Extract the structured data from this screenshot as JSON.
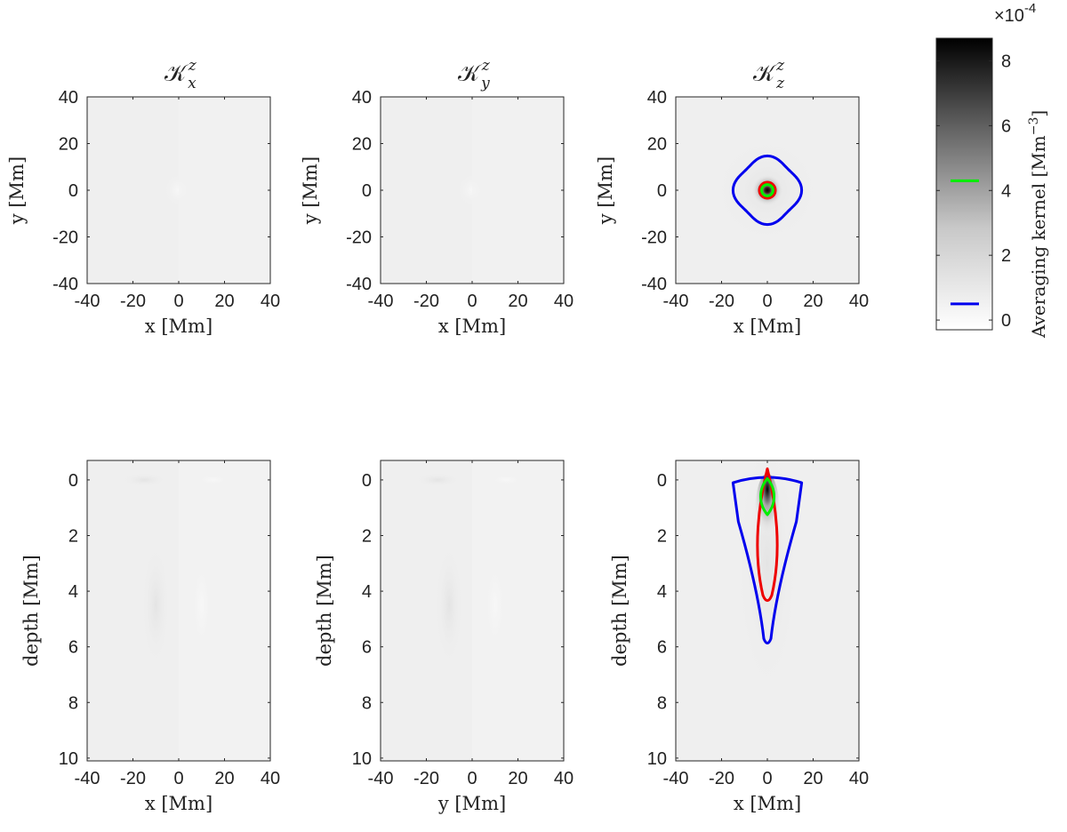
{
  "chart_data": [
    {
      "type": "heatmap",
      "panel": "top-1",
      "title": "K_x^z",
      "title_sym": "𝒦",
      "title_sub": "x",
      "title_sup": "z",
      "xlabel": "x [Mm]",
      "ylabel": "y [Mm]",
      "xlim": [
        -40,
        40
      ],
      "ylim": [
        -40,
        40
      ],
      "x_ticks": [
        "-40",
        "-20",
        "0",
        "20",
        "40"
      ],
      "y_ticks": [
        "40",
        "20",
        "0",
        "-20",
        "-40"
      ],
      "peak_relative": 0.03,
      "contours": []
    },
    {
      "type": "heatmap",
      "panel": "top-2",
      "title": "K_y^z",
      "title_sym": "𝒦",
      "title_sub": "y",
      "title_sup": "z",
      "xlabel": "x [Mm]",
      "ylabel": "y [Mm]",
      "xlim": [
        -40,
        40
      ],
      "ylim": [
        -40,
        40
      ],
      "x_ticks": [
        "-40",
        "-20",
        "0",
        "20",
        "40"
      ],
      "y_ticks": [
        "40",
        "20",
        "0",
        "-20",
        "-40"
      ],
      "peak_relative": 0.02,
      "contours": []
    },
    {
      "type": "heatmap",
      "panel": "top-3",
      "title": "K_z^z",
      "title_sym": "𝒦",
      "title_sub": "z",
      "title_sup": "z",
      "xlabel": "x [Mm]",
      "ylabel": "y [Mm]",
      "xlim": [
        -40,
        40
      ],
      "ylim": [
        -40,
        40
      ],
      "x_ticks": [
        "-40",
        "-20",
        "0",
        "20",
        "40"
      ],
      "y_ticks": [
        "40",
        "20",
        "0",
        "-20",
        "-40"
      ],
      "peak_relative": 1.0,
      "contours": [
        {
          "color": "#0000ee",
          "shape": "rounded-diamond",
          "center": [
            0,
            0
          ],
          "half_width": 15
        },
        {
          "color": "#ee0000",
          "shape": "circle",
          "center": [
            0,
            0
          ],
          "radius": 3.5
        },
        {
          "color": "#00ee00",
          "shape": "circle",
          "center": [
            0,
            0
          ],
          "radius": 2.5
        }
      ]
    },
    {
      "type": "heatmap",
      "panel": "bottom-1",
      "xlabel": "x [Mm]",
      "ylabel": "depth [Mm]",
      "xlim": [
        -40,
        40
      ],
      "ylim": [
        -0.7,
        10.1
      ],
      "x_ticks": [
        "-40",
        "-20",
        "0",
        "20",
        "40"
      ],
      "y_ticks": [
        "0",
        "2",
        "4",
        "6",
        "8",
        "10"
      ],
      "peak_relative": 0.03,
      "contours": []
    },
    {
      "type": "heatmap",
      "panel": "bottom-2",
      "xlabel": "y [Mm]",
      "ylabel": "depth [Mm]",
      "xlim": [
        -40,
        40
      ],
      "ylim": [
        -0.7,
        10.1
      ],
      "x_ticks": [
        "-40",
        "-20",
        "0",
        "20",
        "40"
      ],
      "y_ticks": [
        "0",
        "2",
        "4",
        "6",
        "8",
        "10"
      ],
      "peak_relative": 0.02,
      "contours": []
    },
    {
      "type": "heatmap",
      "panel": "bottom-3",
      "xlabel": "x [Mm]",
      "ylabel": "depth [Mm]",
      "xlim": [
        -40,
        40
      ],
      "ylim": [
        -0.7,
        10.1
      ],
      "x_ticks": [
        "-40",
        "-20",
        "0",
        "20",
        "40"
      ],
      "y_ticks": [
        "0",
        "2",
        "4",
        "6",
        "8",
        "10"
      ],
      "peak_relative": 1.0,
      "contours": [
        {
          "color": "#0000ee",
          "shape": "funnel",
          "top_depth": 0.1,
          "bottom_depth": 5.9,
          "half_width_top": 15
        },
        {
          "color": "#ee0000",
          "shape": "teardrop",
          "top_depth": -0.4,
          "bottom_depth": 4.4,
          "half_width": 6
        },
        {
          "color": "#00ee00",
          "shape": "ellipse",
          "center_depth": 0.6,
          "half_height": 0.65,
          "half_width": 3
        }
      ]
    }
  ],
  "colorbar": {
    "label": "Averaging kernel [Mm",
    "label_sup": "−3",
    "label_close": "]",
    "exponent_base": "×10",
    "exponent_power": "-4",
    "range": [
      -0.3,
      8.7
    ],
    "ticks": [
      "0",
      "2",
      "4",
      "6",
      "8"
    ],
    "tick_values": [
      0,
      2,
      4,
      6,
      8
    ],
    "markers": [
      {
        "color": "#00ee00",
        "value": 4.3
      },
      {
        "color": "#0000ee",
        "value": 0.5
      }
    ]
  },
  "colors": {
    "blue_contour": "#0000ee",
    "red_contour": "#ee0000",
    "green_contour": "#00ee00",
    "background_field": "#efefef"
  }
}
